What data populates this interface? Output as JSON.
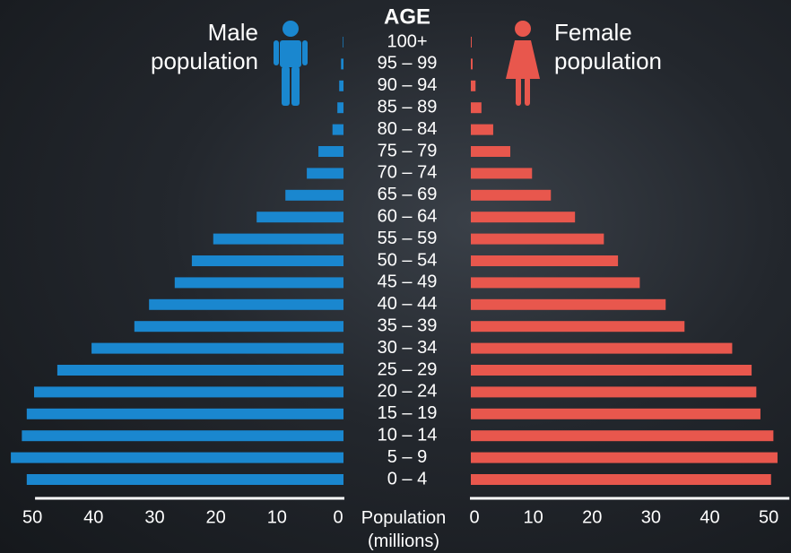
{
  "chart_data": {
    "type": "pyramid",
    "category_header": "AGE",
    "categories": [
      "100+",
      "95 – 99",
      "90 – 94",
      "85 – 89",
      "80 – 84",
      "75 – 79",
      "70 – 74",
      "65 – 69",
      "60 – 64",
      "55 – 59",
      "50 – 54",
      "45 – 49",
      "40 – 44",
      "35 – 39",
      "30 – 34",
      "25 – 29",
      "20 – 24",
      "15 – 19",
      "10 – 14",
      "5 – 9",
      "0 – 4"
    ],
    "series": [
      {
        "name": "Male population",
        "color": "#1a87cf",
        "values": [
          0.1,
          0.4,
          0.7,
          1.0,
          1.8,
          4.1,
          6.0,
          9.5,
          14.2,
          21.3,
          24.8,
          27.6,
          31.8,
          34.2,
          41.2,
          46.8,
          50.6,
          51.8,
          52.6,
          54.4,
          51.8
        ]
      },
      {
        "name": "Female population",
        "color": "#e8574d",
        "values": [
          0.15,
          0.3,
          0.8,
          1.8,
          3.8,
          6.7,
          10.4,
          13.6,
          17.7,
          22.6,
          25.0,
          28.7,
          33.1,
          36.3,
          44.4,
          47.7,
          48.5,
          49.2,
          51.4,
          52.1,
          51.0
        ]
      }
    ],
    "xlabel": "Population (millions)",
    "xlim": [
      0,
      55
    ],
    "xticks": [
      0,
      10,
      20,
      30,
      40,
      50
    ]
  }
}
